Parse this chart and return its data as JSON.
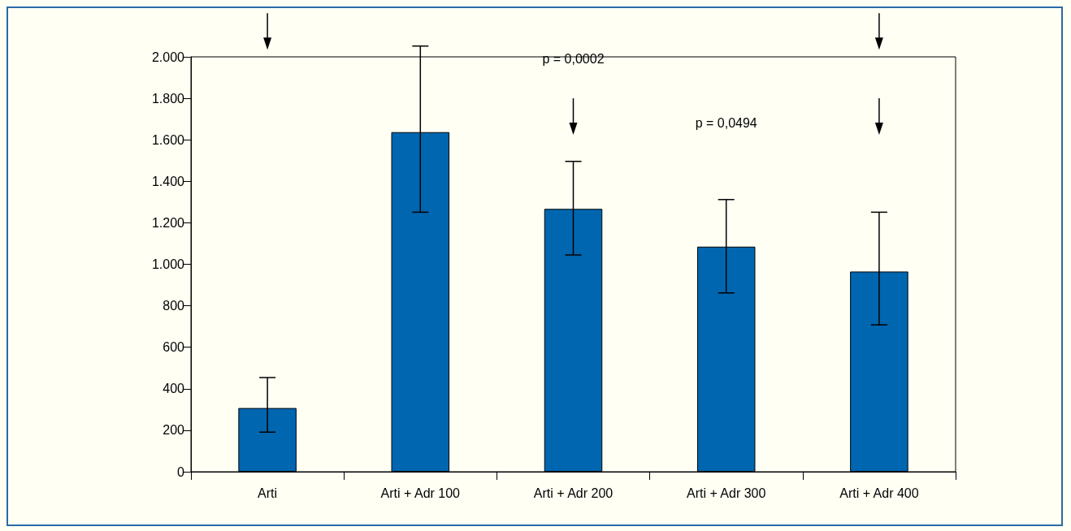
{
  "chart_data": {
    "type": "bar",
    "categories": [
      "Arti",
      "Arti + Adr 100",
      "Arti + Adr 200",
      "Arti + Adr 300",
      "Arti + Adr 400"
    ],
    "series": [
      {
        "color": "#0066b0",
        "values": [
          307,
          1637,
          1267,
          1085,
          965
        ],
        "errors": [
          [
            191,
            454
          ],
          [
            1251,
            2052
          ],
          [
            1045,
            1496
          ],
          [
            862,
            1312
          ],
          [
            708,
            1251
          ]
        ]
      }
    ],
    "ylim": [
      0,
      2000
    ],
    "yticks": [
      0,
      200,
      400,
      600,
      800,
      {
        "value": 1000,
        "label": "1.000"
      },
      {
        "value": 1200,
        "label": "1.200"
      },
      {
        "value": 1400,
        "label": "1.400"
      },
      {
        "value": 1600,
        "label": "1.600"
      },
      {
        "value": 1800,
        "label": "1.800"
      },
      {
        "value": 2000,
        "label": "2.000"
      }
    ],
    "annotations": [
      "p = 0,0002",
      "p = 0,0494"
    ],
    "grid": false
  }
}
